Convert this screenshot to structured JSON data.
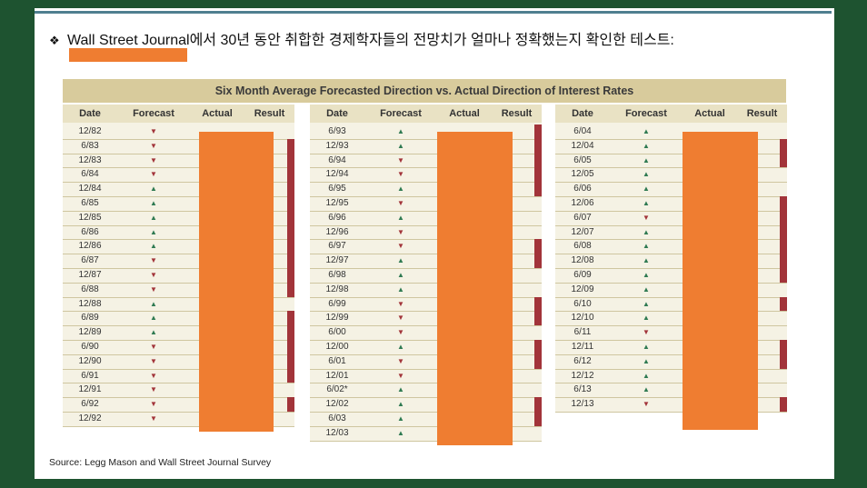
{
  "heading": {
    "bullet": "❖",
    "text": "Wall Street Journal에서 30년 동안 취합한 경제학자들의 전망치가 얼마나 정확했는지 확인한 테스트:"
  },
  "table": {
    "title": "Six Month Average Forecasted Direction vs. Actual Direction of Interest Rates",
    "headers": [
      "Date",
      "Forecast",
      "Actual",
      "Result"
    ],
    "columns": [
      {
        "rows": [
          {
            "date": "12/82",
            "f": "down"
          },
          {
            "date": "6/83",
            "f": "down"
          },
          {
            "date": "12/83",
            "f": "down"
          },
          {
            "date": "6/84",
            "f": "down"
          },
          {
            "date": "12/84",
            "f": "up"
          },
          {
            "date": "6/85",
            "f": "up"
          },
          {
            "date": "12/85",
            "f": "up"
          },
          {
            "date": "6/86",
            "f": "up"
          },
          {
            "date": "12/86",
            "f": "up"
          },
          {
            "date": "6/87",
            "f": "down"
          },
          {
            "date": "12/87",
            "f": "down"
          },
          {
            "date": "6/88",
            "f": "down"
          },
          {
            "date": "12/88",
            "f": "up"
          },
          {
            "date": "6/89",
            "f": "up"
          },
          {
            "date": "12/89",
            "f": "up"
          },
          {
            "date": "6/90",
            "f": "down"
          },
          {
            "date": "12/90",
            "f": "down"
          },
          {
            "date": "6/91",
            "f": "down"
          },
          {
            "date": "12/91",
            "f": "down"
          },
          {
            "date": "6/92",
            "f": "down"
          },
          {
            "date": "12/92",
            "f": "down"
          }
        ]
      },
      {
        "rows": [
          {
            "date": "6/93",
            "f": "up"
          },
          {
            "date": "12/93",
            "f": "up"
          },
          {
            "date": "6/94",
            "f": "down"
          },
          {
            "date": "12/94",
            "f": "down"
          },
          {
            "date": "6/95",
            "f": "up"
          },
          {
            "date": "12/95",
            "f": "down"
          },
          {
            "date": "6/96",
            "f": "up"
          },
          {
            "date": "12/96",
            "f": "down"
          },
          {
            "date": "6/97",
            "f": "down"
          },
          {
            "date": "12/97",
            "f": "up"
          },
          {
            "date": "6/98",
            "f": "up"
          },
          {
            "date": "12/98",
            "f": "up"
          },
          {
            "date": "6/99",
            "f": "down"
          },
          {
            "date": "12/99",
            "f": "down"
          },
          {
            "date": "6/00",
            "f": "down"
          },
          {
            "date": "12/00",
            "f": "up"
          },
          {
            "date": "6/01",
            "f": "down"
          },
          {
            "date": "12/01",
            "f": "down"
          },
          {
            "date": "6/02*",
            "f": "up"
          },
          {
            "date": "12/02",
            "f": "up"
          },
          {
            "date": "6/03",
            "f": "up"
          },
          {
            "date": "12/03",
            "f": "up"
          }
        ]
      },
      {
        "rows": [
          {
            "date": "6/04",
            "f": "up"
          },
          {
            "date": "12/04",
            "f": "up"
          },
          {
            "date": "6/05",
            "f": "up"
          },
          {
            "date": "12/05",
            "f": "up"
          },
          {
            "date": "6/06",
            "f": "up"
          },
          {
            "date": "12/06",
            "f": "up"
          },
          {
            "date": "6/07",
            "f": "down"
          },
          {
            "date": "12/07",
            "f": "up"
          },
          {
            "date": "6/08",
            "f": "up"
          },
          {
            "date": "12/08",
            "f": "up"
          },
          {
            "date": "6/09",
            "f": "up"
          },
          {
            "date": "12/09",
            "f": "up"
          },
          {
            "date": "6/10",
            "f": "up"
          },
          {
            "date": "12/10",
            "f": "up"
          },
          {
            "date": "6/11",
            "f": "down"
          },
          {
            "date": "12/11",
            "f": "up"
          },
          {
            "date": "6/12",
            "f": "up"
          },
          {
            "date": "12/12",
            "f": "up"
          },
          {
            "date": "6/13",
            "f": "up"
          },
          {
            "date": "12/13",
            "f": "down"
          }
        ]
      }
    ]
  },
  "source": "Source: Legg Mason and Wall Street Journal Survey",
  "colors": {
    "up": "#2f7a52",
    "down": "#a2343a",
    "redaction": "#ef7d31",
    "background": "#1e5330"
  }
}
